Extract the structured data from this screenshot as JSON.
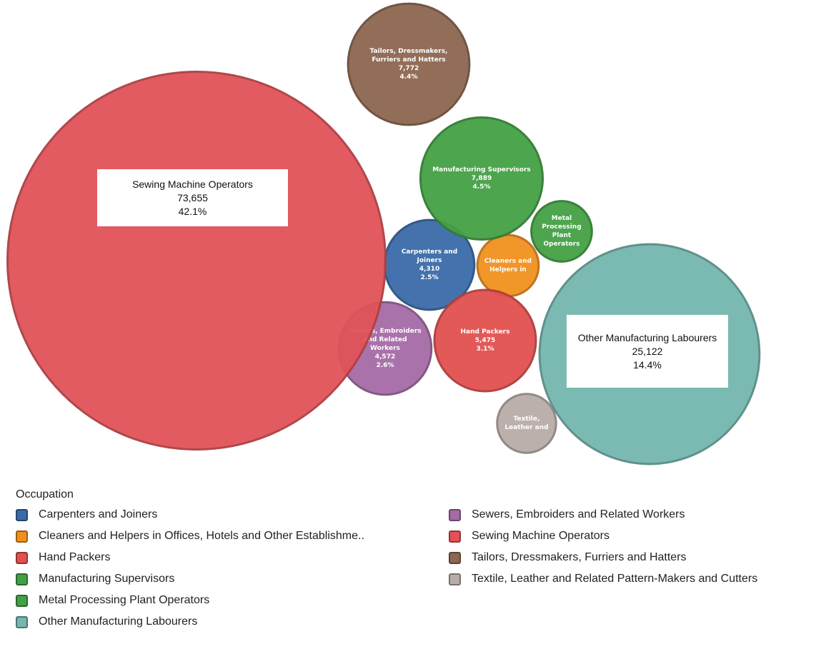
{
  "chart_data": {
    "type": "bubble",
    "legend_title": "Occupation",
    "series": [
      {
        "name": "Carpenters and Joiners",
        "label": "Carpenters and Joiners",
        "color": "#3a6aa8",
        "value": 4310,
        "value_label": "4,310",
        "percent": 2.5,
        "percent_label": "2.5%"
      },
      {
        "name": "Cleaners and Helpers in Offices, Hotels and Other Establishme..",
        "label": "Cleaners and Helpers in",
        "color": "#f0901e",
        "value": 2050
      },
      {
        "name": "Hand Packers",
        "label": "Hand Packers",
        "color": "#e0504f",
        "value": 5475,
        "value_label": "5,475",
        "percent": 3.1,
        "percent_label": "3.1%"
      },
      {
        "name": "Manufacturing Supervisors",
        "label": "Manufacturing Supervisors",
        "color": "#43a045",
        "value": 7889,
        "value_label": "7,889",
        "percent": 4.5,
        "percent_label": "4.5%"
      },
      {
        "name": "Metal Processing Plant Operators",
        "label": "Metal Processing Plant Operators",
        "color": "#43a045",
        "value": 2000
      },
      {
        "name": "Other Manufacturing Labourers",
        "label": "Other Manufacturing Labourers",
        "color": "#74b6ae",
        "value": 25122,
        "value_label": "25,122",
        "percent": 14.4,
        "percent_label": "14.4%"
      },
      {
        "name": "Sewers, Embroiders and Related Workers",
        "label": "Sewers, Embroiders and Related Workers",
        "color": "#a56aa6",
        "value": 4572,
        "value_label": "4,572",
        "percent": 2.6,
        "percent_label": "2.6%"
      },
      {
        "name": "Sewing Machine Operators",
        "label": "Sewing Machine Operators",
        "color": "#e05257",
        "value": 73655,
        "value_label": "73,655",
        "percent": 42.1,
        "percent_label": "42.1%"
      },
      {
        "name": "Tailors, Dressmakers, Furriers and Hatters",
        "label": "Tailors, Dressmakers, Furriers and Hatters",
        "color": "#8c6650",
        "value": 7772,
        "value_label": "7,772",
        "percent": 4.4,
        "percent_label": "4.4%"
      },
      {
        "name": "Textile, Leather and Related Pattern-Makers and Cutters",
        "label": "Textile, Leather and",
        "color": "#b8aca9",
        "value": 1900
      }
    ]
  }
}
